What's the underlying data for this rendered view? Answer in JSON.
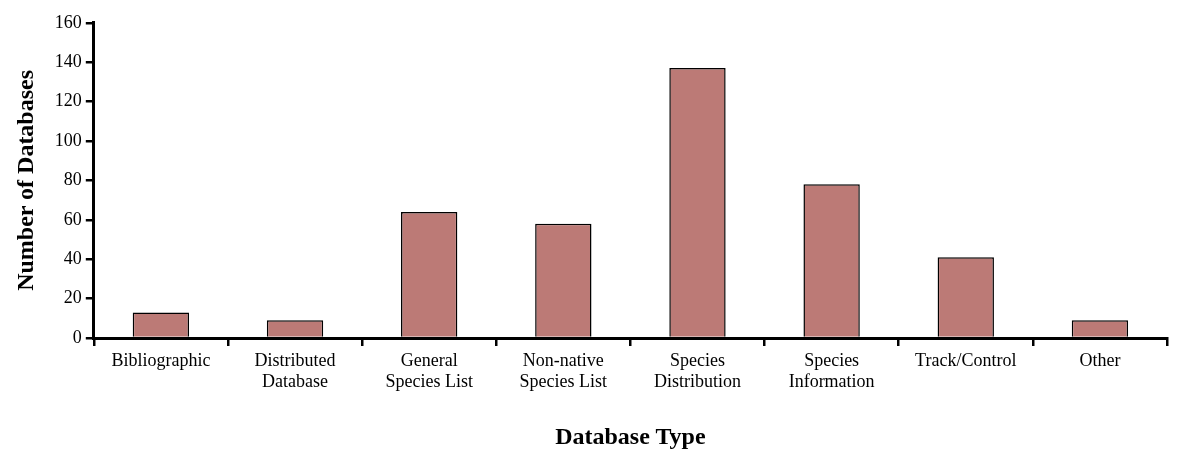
{
  "chart_data": {
    "type": "bar",
    "xlabel": "Database Type",
    "ylabel": "Number of Databases",
    "categories": [
      "Bibliographic",
      "Distributed Database",
      "General Species List",
      "Non-native Species List",
      "Species Distribution",
      "Species Information",
      "Track/Control",
      "Other"
    ],
    "values": [
      13,
      9,
      64,
      58,
      137,
      78,
      41,
      9
    ],
    "color": "#bc7a76",
    "ylim": [
      0,
      160
    ],
    "yticks": [
      0,
      20,
      40,
      60,
      80,
      100,
      120,
      140,
      160
    ],
    "grid": false,
    "legend": false
  }
}
